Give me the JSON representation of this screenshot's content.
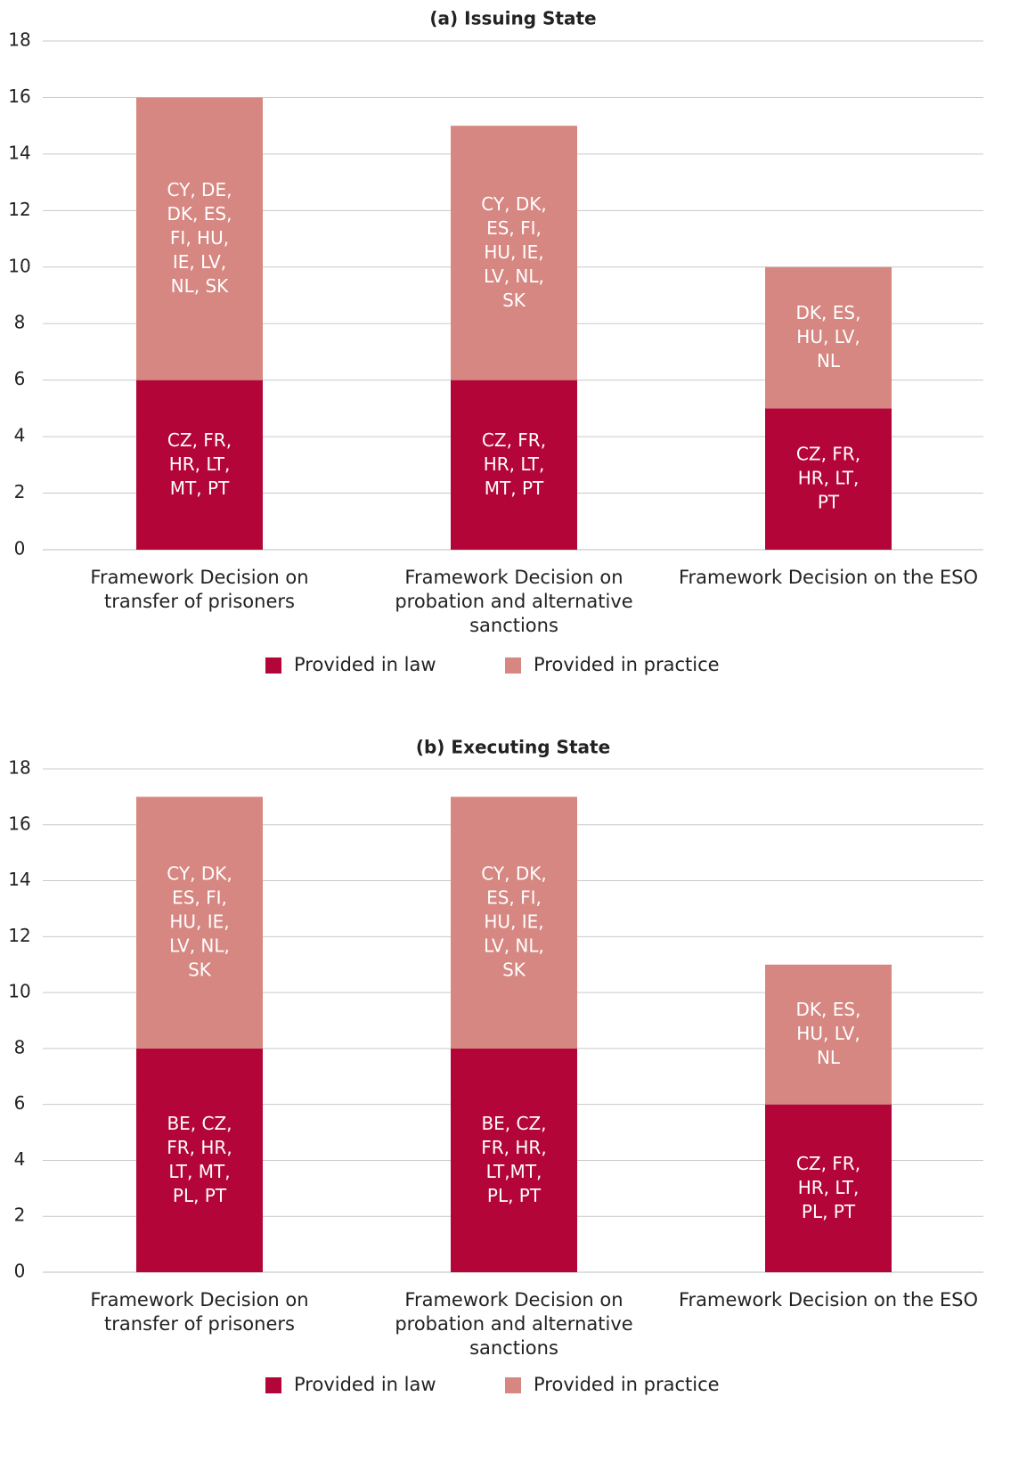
{
  "chart_data": [
    {
      "type": "bar",
      "stacked": true,
      "title": "(a) Issuing State",
      "categories": [
        [
          "Framework Decision on",
          "transfer of prisoners"
        ],
        [
          "Framework Decision on",
          "probation and alternative",
          "sanctions"
        ],
        [
          "Framework Decision on the ESO"
        ]
      ],
      "ylim": [
        0,
        18
      ],
      "yticks": [
        0,
        2,
        4,
        6,
        8,
        10,
        12,
        14,
        16,
        18
      ],
      "grid": true,
      "legend_position": "bottom",
      "series": [
        {
          "name": "Provided in law",
          "color": "#b30538",
          "values": [
            6,
            6,
            5
          ],
          "labels": [
            [
              "CZ, FR,",
              "HR, LT,",
              "MT, PT"
            ],
            [
              "CZ, FR,",
              "HR, LT,",
              "MT, PT"
            ],
            [
              "CZ, FR,",
              "HR, LT,",
              "PT"
            ]
          ]
        },
        {
          "name": "Provided in practice",
          "color": "#d68782",
          "values": [
            10,
            9,
            5
          ],
          "labels": [
            [
              "CY, DE,",
              "DK, ES,",
              "FI, HU,",
              "IE, LV,",
              "NL, SK"
            ],
            [
              "CY, DK,",
              "ES, FI,",
              "HU, IE,",
              "LV, NL,",
              "SK"
            ],
            [
              "DK, ES,",
              "HU, LV,",
              "NL"
            ]
          ]
        }
      ]
    },
    {
      "type": "bar",
      "stacked": true,
      "title": "(b) Executing State",
      "categories": [
        [
          "Framework Decision on",
          "transfer of prisoners"
        ],
        [
          "Framework Decision on",
          "probation and alternative",
          "sanctions"
        ],
        [
          "Framework Decision on the ESO"
        ]
      ],
      "ylim": [
        0,
        18
      ],
      "yticks": [
        0,
        2,
        4,
        6,
        8,
        10,
        12,
        14,
        16,
        18
      ],
      "grid": true,
      "legend_position": "bottom",
      "series": [
        {
          "name": "Provided in law",
          "color": "#b30538",
          "values": [
            8,
            8,
            6
          ],
          "labels": [
            [
              "BE, CZ,",
              "FR, HR,",
              "LT, MT,",
              "PL, PT"
            ],
            [
              "BE, CZ,",
              "FR, HR,",
              "LT,MT,",
              "PL, PT"
            ],
            [
              "CZ, FR,",
              "HR, LT,",
              "PL, PT"
            ]
          ]
        },
        {
          "name": "Provided in practice",
          "color": "#d68782",
          "values": [
            9,
            9,
            5
          ],
          "labels": [
            [
              "CY, DK,",
              "ES, FI,",
              "HU, IE,",
              "LV, NL,",
              "SK"
            ],
            [
              "CY, DK,",
              "ES, FI,",
              "HU, IE,",
              "LV, NL,",
              "SK"
            ],
            [
              "DK, ES,",
              "HU, LV,",
              "NL"
            ]
          ]
        }
      ]
    }
  ]
}
